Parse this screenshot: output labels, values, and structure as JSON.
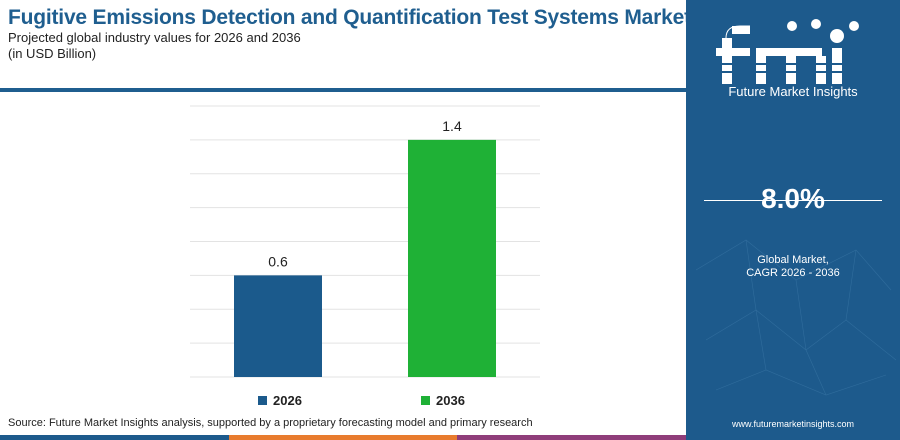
{
  "title": "Fugitive Emissions Detection and Quantification Test Systems Market",
  "subtitle": "Projected global industry values for 2026 and 2036",
  "unit": "(in USD Billion)",
  "source": "Source: Future Market Insights analysis, supported by a proprietary forecasting model and primary research",
  "brand": {
    "logo_text": "fmi",
    "name": "Future Market Insights",
    "url": "www.futuremarketinsights.com"
  },
  "cagr": {
    "value": "8.0%",
    "label_line1": "Global Market,",
    "label_line2": "CAGR 2026 - 2036"
  },
  "colors": {
    "primary": "#1f5e8f",
    "bar_2026": "#1b5a8c",
    "bar_2036": "#1fb136",
    "panel": "#1d5a8c",
    "bottom_bar": [
      "#1d5a8c",
      "#e87b2e",
      "#8f3d7a"
    ]
  },
  "chart_data": {
    "type": "bar",
    "categories": [
      "2026",
      "2036"
    ],
    "values": [
      0.6,
      1.4
    ],
    "data_labels": [
      "0.6",
      "1.4"
    ],
    "ylim": [
      0,
      1.6
    ],
    "grid": true,
    "legend": "bottom",
    "legend_entries": [
      "2026",
      "2036"
    ]
  }
}
